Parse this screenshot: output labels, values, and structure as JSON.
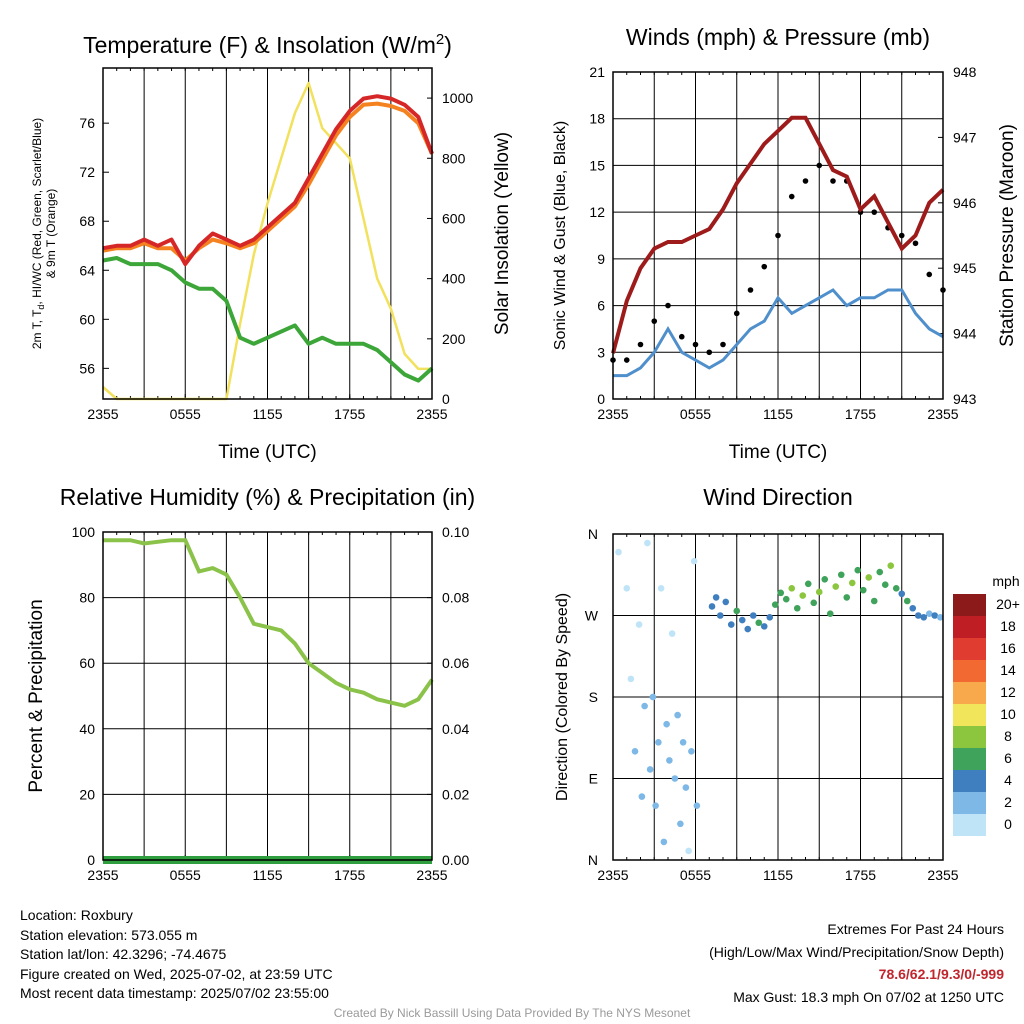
{
  "chart_data": [
    {
      "type": "line",
      "title_main": "Temperature (F) & Insolation (W/m",
      "title_sup": "2",
      "title_close": ")",
      "xlabel": "Time (UTC)",
      "ylabel_lines": [
        "2m T, T",
        "d",
        ", HI/WC (Red, Green, Scarlet/Blue)",
        "& 9m T (Orange)"
      ],
      "ylabel2": "Solar Insolation (Yellow)",
      "x_ticks": [
        "2355",
        "0555",
        "1155",
        "1755",
        "2355"
      ],
      "ylim": [
        53.5,
        80.5
      ],
      "y_ticks": [
        56,
        60,
        64,
        68,
        72,
        76
      ],
      "y2lim": [
        0,
        1100
      ],
      "y2_ticks": [
        0,
        200,
        400,
        600,
        800,
        1000
      ],
      "x_hours": [
        0,
        1,
        2,
        3,
        4,
        5,
        6,
        7,
        8,
        9,
        10,
        11,
        12,
        13,
        14,
        15,
        16,
        17,
        18,
        19,
        20,
        21,
        22,
        23,
        24
      ],
      "series": [
        {
          "color": "#d62728",
          "values": [
            65.8,
            66.0,
            66.0,
            66.5,
            66.0,
            66.5,
            64.5,
            66.0,
            67.0,
            66.5,
            66.0,
            66.5,
            67.5,
            68.5,
            69.5,
            71.5,
            73.5,
            75.5,
            77.0,
            78.0,
            78.2,
            78.0,
            77.5,
            76.5,
            73.5
          ]
        },
        {
          "color": "#f58220",
          "values": [
            65.6,
            65.8,
            65.8,
            66.2,
            65.8,
            65.8,
            64.8,
            65.8,
            66.5,
            66.2,
            65.8,
            66.2,
            67.2,
            68.2,
            69.2,
            71.0,
            73.0,
            75.0,
            76.5,
            77.5,
            77.6,
            77.4,
            77.0,
            76.0,
            73.5
          ]
        },
        {
          "color": "#3ca639",
          "values": [
            64.8,
            65.0,
            64.5,
            64.5,
            64.5,
            64.0,
            63.0,
            62.5,
            62.5,
            61.5,
            58.5,
            58.0,
            58.5,
            59.0,
            59.5,
            58.0,
            58.5,
            58.0,
            58.0,
            58.0,
            57.5,
            56.5,
            55.5,
            55.0,
            56.0
          ]
        },
        {
          "color": "#f2e15c",
          "values": [
            40,
            0,
            0,
            0,
            0,
            0,
            0,
            0,
            0,
            0,
            250,
            480,
            650,
            800,
            950,
            1050,
            900,
            850,
            800,
            600,
            400,
            300,
            150,
            100,
            100
          ]
        }
      ]
    },
    {
      "type": "line",
      "title": "Winds (mph) & Pressure (mb)",
      "xlabel": "Time (UTC)",
      "ylabel": "Sonic Wind & Gust (Blue, Black)",
      "ylabel2": "Station Pressure (Maroon)",
      "x_ticks": [
        "2355",
        "0555",
        "1155",
        "1755",
        "2355"
      ],
      "ylim": [
        0,
        21
      ],
      "y_ticks": [
        0,
        3,
        6,
        9,
        12,
        15,
        18,
        21
      ],
      "y2lim": [
        943,
        948
      ],
      "y2_ticks": [
        943,
        944,
        945,
        946,
        947,
        948
      ],
      "x_hours": [
        0,
        1,
        2,
        3,
        4,
        5,
        6,
        7,
        8,
        9,
        10,
        11,
        12,
        13,
        14,
        15,
        16,
        17,
        18,
        19,
        20,
        21,
        22,
        23,
        24
      ],
      "series": [
        {
          "color": "#4f8fcc",
          "values": [
            1.5,
            1.5,
            2.0,
            3.0,
            4.5,
            3.0,
            2.5,
            2.0,
            2.5,
            3.5,
            4.5,
            5.0,
            6.5,
            5.5,
            6.0,
            6.5,
            7.0,
            6.0,
            6.5,
            6.5,
            7.0,
            7.0,
            5.5,
            4.5,
            4.0
          ]
        },
        {
          "color": "#000000",
          "markers": true,
          "values": [
            2.5,
            2.5,
            3.5,
            5.0,
            6.0,
            4.0,
            3.5,
            3.0,
            3.5,
            5.5,
            7.0,
            8.5,
            10.5,
            13.0,
            14.0,
            15.0,
            14.0,
            14.0,
            12.0,
            12.0,
            11.0,
            10.5,
            10.0,
            8.0,
            7.0
          ]
        },
        {
          "color": "#9e1b1b",
          "values": [
            943.7,
            944.5,
            945.0,
            945.3,
            945.4,
            945.4,
            945.5,
            945.6,
            945.9,
            946.3,
            946.6,
            946.9,
            947.1,
            947.3,
            947.3,
            946.9,
            946.5,
            946.4,
            945.9,
            946.1,
            945.7,
            945.3,
            945.5,
            946.0,
            946.2
          ]
        }
      ]
    },
    {
      "type": "line",
      "title": "Relative Humidity (%) & Precipitation (in)",
      "ylabel": "Percent & Precipitation",
      "x_ticks": [
        "2355",
        "0555",
        "1155",
        "1755",
        "2355"
      ],
      "ylim": [
        0,
        100
      ],
      "y_ticks": [
        0,
        20,
        40,
        60,
        80,
        100
      ],
      "y2lim": [
        0,
        0.1
      ],
      "y2_ticks": [
        "0.00",
        "0.02",
        "0.04",
        "0.06",
        "0.08",
        "0.10"
      ],
      "x_hours": [
        0,
        1,
        2,
        3,
        4,
        5,
        6,
        7,
        8,
        9,
        10,
        11,
        12,
        13,
        14,
        15,
        16,
        17,
        18,
        19,
        20,
        21,
        22,
        23,
        24
      ],
      "series": [
        {
          "color": "#8bc34a",
          "values": [
            97.5,
            97.5,
            97.5,
            96.5,
            97.0,
            97.5,
            97.5,
            88.0,
            89.0,
            87.0,
            80.0,
            72.0,
            71.0,
            70.0,
            66.0,
            60.0,
            57.0,
            54.0,
            52.0,
            51.0,
            49.0,
            48.0,
            47.0,
            49.0,
            55.0
          ]
        },
        {
          "color": "#2e9e3e",
          "values": [
            0,
            0,
            0,
            0,
            0,
            0,
            0,
            0,
            0,
            0,
            0,
            0,
            0,
            0,
            0,
            0,
            0,
            0,
            0,
            0,
            0,
            0,
            0,
            0,
            0
          ]
        }
      ]
    },
    {
      "type": "scatter",
      "title": "Wind Direction",
      "ylabel": "Direction (Colored By Speed)",
      "x_ticks": [
        "2355",
        "0555",
        "1155",
        "1755",
        "2355"
      ],
      "y_ticks": [
        "N",
        "E",
        "S",
        "W",
        "N"
      ],
      "ylim": [
        0,
        360
      ],
      "colorbar_unit": "mph",
      "colorbar": [
        {
          "label": "20+",
          "color": "#8c1a1a"
        },
        {
          "label": "18",
          "color": "#bf1e24"
        },
        {
          "label": "16",
          "color": "#e03c2f"
        },
        {
          "label": "14",
          "color": "#f26a31"
        },
        {
          "label": "12",
          "color": "#f8a94c"
        },
        {
          "label": "10",
          "color": "#f1e55b"
        },
        {
          "label": "8",
          "color": "#8cc63f"
        },
        {
          "label": "6",
          "color": "#3fa35b"
        },
        {
          "label": "4",
          "color": "#3f7fbf"
        },
        {
          "label": "2",
          "color": "#7db8e6"
        },
        {
          "label": "0",
          "color": "#bfe4f8"
        }
      ],
      "points": [
        {
          "h": 0.4,
          "dir": 340,
          "spd": 0.5
        },
        {
          "h": 1.0,
          "dir": 300,
          "spd": 1
        },
        {
          "h": 1.3,
          "dir": 200,
          "spd": 1
        },
        {
          "h": 1.6,
          "dir": 120,
          "spd": 2
        },
        {
          "h": 1.9,
          "dir": 260,
          "spd": 1
        },
        {
          "h": 2.1,
          "dir": 70,
          "spd": 2
        },
        {
          "h": 2.3,
          "dir": 170,
          "spd": 3
        },
        {
          "h": 2.5,
          "dir": 350,
          "spd": 0.5
        },
        {
          "h": 2.7,
          "dir": 100,
          "spd": 2
        },
        {
          "h": 2.9,
          "dir": 180,
          "spd": 3
        },
        {
          "h": 3.1,
          "dir": 60,
          "spd": 2
        },
        {
          "h": 3.3,
          "dir": 130,
          "spd": 2
        },
        {
          "h": 3.5,
          "dir": 300,
          "spd": 1
        },
        {
          "h": 3.7,
          "dir": 20,
          "spd": 2
        },
        {
          "h": 3.9,
          "dir": 150,
          "spd": 3
        },
        {
          "h": 4.1,
          "dir": 110,
          "spd": 3
        },
        {
          "h": 4.3,
          "dir": 250,
          "spd": 1
        },
        {
          "h": 4.5,
          "dir": 90,
          "spd": 2
        },
        {
          "h": 4.7,
          "dir": 160,
          "spd": 2
        },
        {
          "h": 4.9,
          "dir": 40,
          "spd": 2
        },
        {
          "h": 5.1,
          "dir": 130,
          "spd": 3
        },
        {
          "h": 5.3,
          "dir": 80,
          "spd": 2
        },
        {
          "h": 5.5,
          "dir": 10,
          "spd": 1
        },
        {
          "h": 5.7,
          "dir": 120,
          "spd": 2
        },
        {
          "h": 5.9,
          "dir": 330,
          "spd": 1
        },
        {
          "h": 6.1,
          "dir": 60,
          "spd": 2
        },
        {
          "h": 7.2,
          "dir": 280,
          "spd": 4
        },
        {
          "h": 7.5,
          "dir": 290,
          "spd": 5
        },
        {
          "h": 7.8,
          "dir": 270,
          "spd": 4
        },
        {
          "h": 8.2,
          "dir": 285,
          "spd": 5
        },
        {
          "h": 8.6,
          "dir": 260,
          "spd": 4
        },
        {
          "h": 9.0,
          "dir": 275,
          "spd": 6
        },
        {
          "h": 9.4,
          "dir": 265,
          "spd": 5
        },
        {
          "h": 9.8,
          "dir": 255,
          "spd": 4
        },
        {
          "h": 10.2,
          "dir": 270,
          "spd": 5
        },
        {
          "h": 10.6,
          "dir": 262,
          "spd": 6
        },
        {
          "h": 11.0,
          "dir": 258,
          "spd": 4
        },
        {
          "h": 11.4,
          "dir": 268,
          "spd": 5
        },
        {
          "h": 11.8,
          "dir": 282,
          "spd": 6
        },
        {
          "h": 12.2,
          "dir": 295,
          "spd": 7
        },
        {
          "h": 12.6,
          "dir": 288,
          "spd": 7
        },
        {
          "h": 13.0,
          "dir": 300,
          "spd": 8
        },
        {
          "h": 13.4,
          "dir": 278,
          "spd": 7
        },
        {
          "h": 13.8,
          "dir": 292,
          "spd": 8
        },
        {
          "h": 14.2,
          "dir": 305,
          "spd": 7
        },
        {
          "h": 14.6,
          "dir": 284,
          "spd": 6
        },
        {
          "h": 15.0,
          "dir": 296,
          "spd": 8
        },
        {
          "h": 15.4,
          "dir": 310,
          "spd": 7
        },
        {
          "h": 15.8,
          "dir": 272,
          "spd": 6
        },
        {
          "h": 16.2,
          "dir": 302,
          "spd": 8
        },
        {
          "h": 16.6,
          "dir": 315,
          "spd": 7
        },
        {
          "h": 17.0,
          "dir": 290,
          "spd": 6
        },
        {
          "h": 17.4,
          "dir": 306,
          "spd": 8
        },
        {
          "h": 17.8,
          "dir": 320,
          "spd": 7
        },
        {
          "h": 18.2,
          "dir": 298,
          "spd": 6
        },
        {
          "h": 18.6,
          "dir": 312,
          "spd": 8
        },
        {
          "h": 19.0,
          "dir": 286,
          "spd": 7
        },
        {
          "h": 19.4,
          "dir": 318,
          "spd": 6
        },
        {
          "h": 19.8,
          "dir": 304,
          "spd": 7
        },
        {
          "h": 20.2,
          "dir": 325,
          "spd": 8
        },
        {
          "h": 20.6,
          "dir": 300,
          "spd": 6
        },
        {
          "h": 21.0,
          "dir": 294,
          "spd": 5
        },
        {
          "h": 21.4,
          "dir": 286,
          "spd": 6
        },
        {
          "h": 21.8,
          "dir": 278,
          "spd": 5
        },
        {
          "h": 22.2,
          "dir": 270,
          "spd": 4
        },
        {
          "h": 22.6,
          "dir": 268,
          "spd": 4
        },
        {
          "h": 23.0,
          "dir": 272,
          "spd": 3
        },
        {
          "h": 23.4,
          "dir": 270,
          "spd": 4
        },
        {
          "h": 23.8,
          "dir": 268,
          "spd": 3
        }
      ]
    }
  ],
  "info_left": [
    "Location: Roxbury",
    "Station elevation: 573.055 m",
    "Station lat/lon: 42.3296; -74.4675",
    "Figure created on Wed, 2025-07-02, at 23:59 UTC",
    "Most recent data timestamp: 2025/07/02 23:55:00"
  ],
  "extremes": {
    "heading": "Extremes For Past 24 Hours",
    "subheading": "(High/Low/Max Wind/Precipitation/Snow Depth)",
    "values": "78.6/62.1/9.3/0/-999",
    "max_gust": "Max Gust: 18.3 mph On 07/02 at 1250 UTC"
  },
  "credit": "Created By Nick Bassill Using Data Provided By The NYS Mesonet"
}
